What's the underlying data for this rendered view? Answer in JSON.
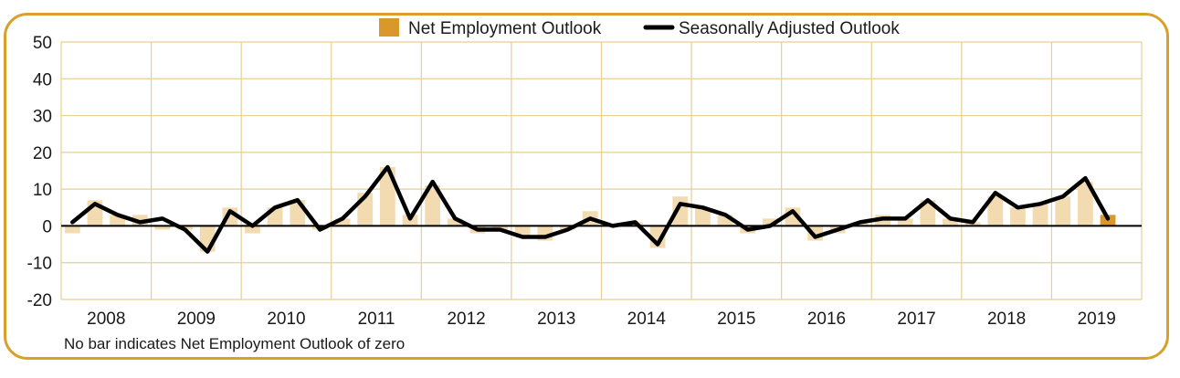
{
  "chart_data": {
    "type": "bar",
    "title": "",
    "xlabel": "",
    "ylabel": "",
    "ylim": [
      -20,
      50
    ],
    "yticks": [
      50,
      40,
      30,
      20,
      10,
      0,
      -10,
      -20
    ],
    "years": [
      "2008",
      "2009",
      "2010",
      "2011",
      "2012",
      "2013",
      "2014",
      "2015",
      "2016",
      "2017",
      "2018",
      "2019"
    ],
    "quarters_per_year": 4,
    "grid": true,
    "legend": {
      "placement": "top-center"
    },
    "note": "No bar indicates Net Employment Outlook of zero",
    "series": [
      {
        "name": "Net Employment Outlook",
        "kind": "bar",
        "color": "#f2dbb0",
        "last_color": "#d8982a",
        "values": [
          -2,
          7,
          3,
          3,
          -1,
          -1,
          -7,
          5,
          -2,
          5,
          7,
          -1,
          2,
          9,
          16,
          3,
          11,
          2,
          -2,
          -1,
          -3,
          -4,
          -1,
          4,
          0,
          1,
          -6,
          8,
          5,
          3,
          -2,
          2,
          5,
          -4,
          -2,
          1,
          3,
          2,
          7,
          2,
          1,
          8,
          5,
          6,
          8,
          12,
          3
        ],
        "legend_color": "#d8982a"
      },
      {
        "name": "Seasonally Adjusted Outlook",
        "kind": "line",
        "color": "#000000",
        "values": [
          1,
          6,
          3,
          1,
          2,
          -1,
          -7,
          4,
          0,
          5,
          7,
          -1,
          2,
          8,
          16,
          2,
          12,
          2,
          -1,
          -1,
          -3,
          -3,
          -1,
          2,
          0,
          1,
          -5,
          6,
          5,
          3,
          -1,
          0,
          4,
          -3,
          -1,
          1,
          2,
          2,
          7,
          2,
          1,
          9,
          5,
          6,
          8,
          13,
          2
        ]
      }
    ]
  }
}
